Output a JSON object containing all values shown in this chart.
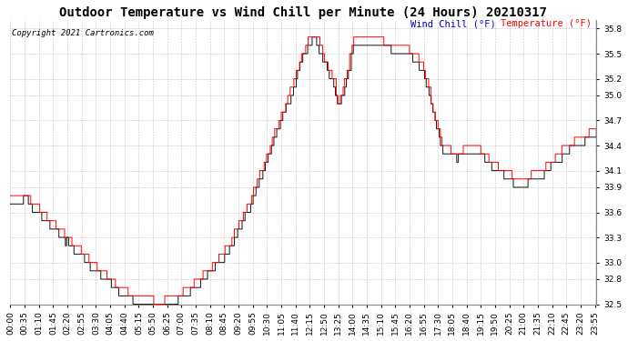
{
  "title": "Outdoor Temperature vs Wind Chill per Minute (24 Hours) 20210317",
  "copyright": "Copyright 2021 Cartronics.com",
  "legend_wind_chill": "Wind Chill (°F)",
  "legend_temperature": "Temperature (°F)",
  "wind_chill_color": "#0000BB",
  "temperature_color": "#FF0000",
  "wind_chill_line_color": "#111111",
  "background_color": "#FFFFFF",
  "grid_color": "#AAAAAA",
  "ylim": [
    32.5,
    35.9
  ],
  "yticks": [
    32.5,
    32.8,
    33.0,
    33.3,
    33.6,
    33.9,
    34.1,
    34.4,
    34.7,
    35.0,
    35.2,
    35.5,
    35.8
  ],
  "title_fontsize": 10,
  "copyright_fontsize": 6.5,
  "legend_fontsize": 7.5,
  "tick_fontsize": 6.5,
  "tick_interval_minutes": 35
}
